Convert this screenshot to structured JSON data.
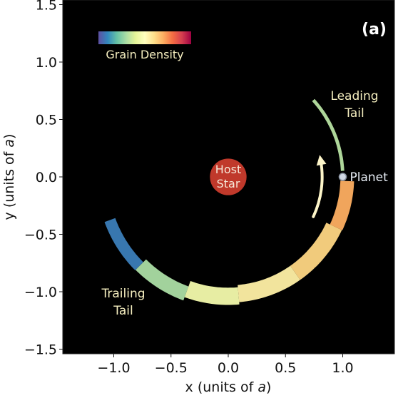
{
  "chart_data": {
    "type": "scatter",
    "panel_label": "(a)",
    "xlabel_prefix": "x (units of ",
    "xlabel_var": "a",
    "xlabel_suffix": ")",
    "ylabel_prefix": "y (units of ",
    "ylabel_var": "a",
    "ylabel_suffix": ")",
    "xlim": [
      -1.5,
      1.5
    ],
    "ylim": [
      -1.55,
      1.55
    ],
    "xticks": [
      -1.0,
      -0.5,
      0.0,
      0.5,
      1.0
    ],
    "xtick_labels": [
      "−1.0",
      "−0.5",
      "0.0",
      "0.5",
      "1.0"
    ],
    "yticks": [
      -1.5,
      -1.0,
      -0.5,
      0.0,
      0.5,
      1.0,
      1.5
    ],
    "ytick_labels": [
      "−1.5",
      "−1.0",
      "−0.5",
      "0.0",
      "0.5",
      "1.0",
      "1.5"
    ],
    "background": "#000000",
    "colormap": {
      "name": "Spectral",
      "label": "Grain Density",
      "stops": [
        "#5e4fa2",
        "#3288bd",
        "#66c2a5",
        "#abdda4",
        "#e6f598",
        "#ffffbf",
        "#fee08b",
        "#fdae61",
        "#f46d43",
        "#d53e4f",
        "#9e0142"
      ]
    },
    "host_star": {
      "x": 0.0,
      "y": 0.0,
      "radius": 0.16,
      "color": "#c0392b",
      "label_line1": "Host",
      "label_line2": "Star"
    },
    "planet": {
      "x": 1.0,
      "y": 0.0,
      "label": "Planet"
    },
    "annotations": {
      "leading_line1": "Leading",
      "leading_line2": "Tail",
      "trailing_line1": "Trailing",
      "trailing_line2": "Tail"
    },
    "orbit_arrow": {
      "from_angle_deg": -25,
      "to_angle_deg": 10,
      "radius": 0.82
    },
    "tail_segments": [
      {
        "name": "leading-tail",
        "start_angle_deg": 3,
        "end_angle_deg": 42,
        "radius": 1.0,
        "width": 0.03,
        "density": 0.32
      },
      {
        "name": "trailing-arc-outer",
        "start_angle_deg": 200,
        "end_angle_deg": 225,
        "radius": 1.1,
        "width": 0.1,
        "density": 0.08
      },
      {
        "name": "trailing-arc-1",
        "start_angle_deg": 225,
        "end_angle_deg": 250,
        "radius": 1.08,
        "width": 0.13,
        "density": 0.3
      },
      {
        "name": "trailing-arc-2",
        "start_angle_deg": 250,
        "end_angle_deg": 275,
        "radius": 1.04,
        "width": 0.15,
        "density": 0.45
      },
      {
        "name": "trailing-arc-3",
        "start_angle_deg": 275,
        "end_angle_deg": 305,
        "radius": 1.02,
        "width": 0.15,
        "density": 0.55
      },
      {
        "name": "trailing-arc-4",
        "start_angle_deg": 305,
        "end_angle_deg": 335,
        "radius": 1.02,
        "width": 0.15,
        "density": 0.62
      },
      {
        "name": "trailing-arc-5",
        "start_angle_deg": 335,
        "end_angle_deg": 358,
        "radius": 1.04,
        "width": 0.12,
        "density": 0.7
      }
    ]
  }
}
